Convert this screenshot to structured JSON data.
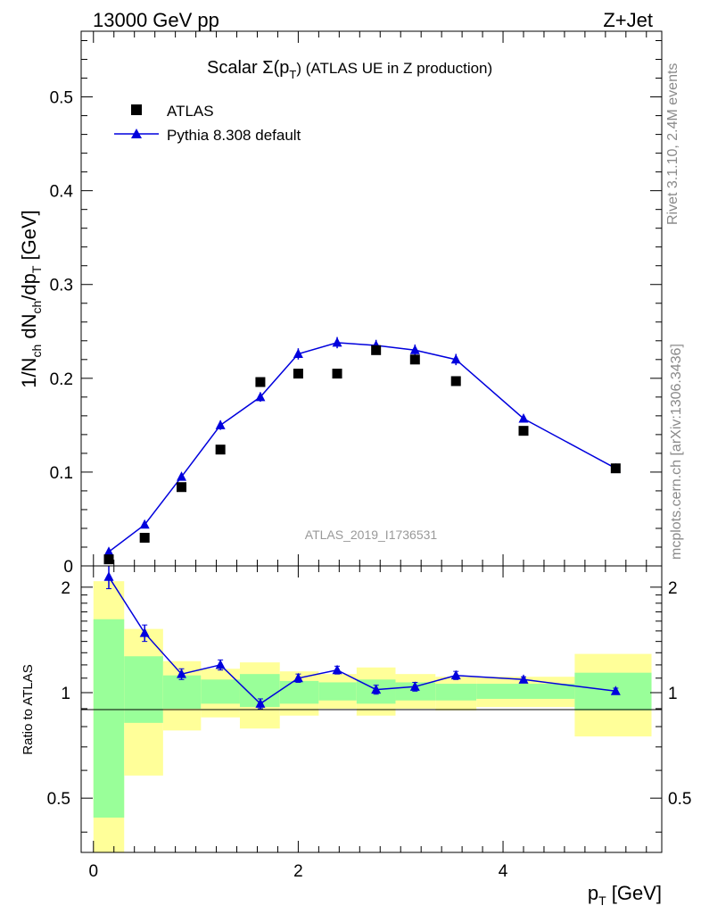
{
  "header": {
    "left": "13000 GeV pp",
    "right": "Z+Jet"
  },
  "side_text": {
    "right_top": "Rivet 3.1.10,  2.4M events",
    "right_bottom": "mcplots.cern.ch [arXiv:1306.3436]"
  },
  "chart_data": [
    {
      "type": "line",
      "panel": "main",
      "title_prefix": "Scalar Σ(p",
      "title_sub": "T",
      "title_suffix": ") (ATLAS UE in Z production)",
      "ylabel_parts": [
        "1/N",
        "ch",
        " dN",
        "ch",
        "/dp",
        "T",
        " [GeV]"
      ],
      "watermark": "ATLAS_2019_I1736531",
      "xlim": [
        -0.12,
        5.55
      ],
      "ylim": [
        0,
        0.57
      ],
      "grid": false,
      "legend_position": "top-left",
      "ytick_labels": [
        "0",
        "0.1",
        "0.2",
        "0.3",
        "0.4",
        "0.5"
      ],
      "ytick_values": [
        0,
        0.1,
        0.2,
        0.3,
        0.4,
        0.5
      ],
      "series": [
        {
          "name": "ATLAS",
          "marker": "square",
          "color": "#000000",
          "x": [
            0.15,
            0.5,
            0.86,
            1.24,
            1.63,
            2.0,
            2.38,
            2.76,
            3.14,
            3.54,
            4.2,
            5.1
          ],
          "y": [
            0.007,
            0.03,
            0.084,
            0.124,
            0.196,
            0.205,
            0.205,
            0.23,
            0.22,
            0.197,
            0.144,
            0.104
          ]
        },
        {
          "name": "Pythia 8.308 default",
          "marker": "triangle",
          "color": "#0000dd",
          "x": [
            0.15,
            0.5,
            0.86,
            1.24,
            1.63,
            2.0,
            2.38,
            2.76,
            3.14,
            3.54,
            4.2,
            5.1
          ],
          "y": [
            0.015,
            0.044,
            0.095,
            0.15,
            0.18,
            0.226,
            0.238,
            0.235,
            0.23,
            0.22,
            0.157,
            0.104
          ],
          "err": [
            0.002,
            0.002,
            0.004,
            0.005,
            0.005,
            0.006,
            0.006,
            0.006,
            0.006,
            0.006,
            0.003,
            0.002
          ]
        }
      ]
    },
    {
      "type": "line",
      "panel": "ratio",
      "xlabel_main": "p",
      "xlabel_sub": "T",
      "xlabel_unit": " [GeV]",
      "ylabel": "Ratio to ATLAS",
      "xlim": [
        -0.12,
        5.55
      ],
      "ylim": [
        0.35,
        2.3
      ],
      "log_y": true,
      "xtick_labels": [
        "0",
        "2",
        "4"
      ],
      "xtick_values": [
        0,
        2,
        4
      ],
      "ytick_labels": [
        "0.5",
        "1",
        "2"
      ],
      "ytick_values": [
        0.5,
        1,
        2
      ],
      "bands": {
        "bin_edges": [
          0.0,
          0.3,
          0.68,
          1.05,
          1.43,
          1.82,
          2.2,
          2.57,
          2.95,
          3.34,
          3.74,
          4.7,
          5.45
        ],
        "inner_low": [
          0.44,
          0.82,
          0.9,
          0.93,
          0.91,
          0.93,
          0.95,
          0.93,
          0.95,
          0.95,
          0.96,
          0.89
        ],
        "inner_high": [
          1.62,
          1.27,
          1.12,
          1.09,
          1.13,
          1.08,
          1.07,
          1.09,
          1.07,
          1.06,
          1.06,
          1.14
        ],
        "outer_low": [
          0.35,
          0.58,
          0.78,
          0.85,
          0.79,
          0.86,
          0.9,
          0.86,
          0.9,
          0.89,
          0.91,
          0.75
        ],
        "outer_high": [
          2.08,
          1.52,
          1.23,
          1.17,
          1.22,
          1.15,
          1.13,
          1.18,
          1.13,
          1.11,
          1.11,
          1.29
        ],
        "inner_color": "#99ff99",
        "outer_color": "#ffff99"
      },
      "series": [
        {
          "name": "Pythia 8.308 default",
          "marker": "triangle",
          "color": "#0000dd",
          "x": [
            0.15,
            0.5,
            0.86,
            1.24,
            1.63,
            2.0,
            2.38,
            2.76,
            3.14,
            3.54,
            4.2,
            5.1
          ],
          "y": [
            2.14,
            1.48,
            1.13,
            1.2,
            0.93,
            1.1,
            1.16,
            1.02,
            1.04,
            1.12,
            1.09,
            1.01
          ],
          "err": [
            0.16,
            0.08,
            0.04,
            0.04,
            0.03,
            0.03,
            0.03,
            0.03,
            0.03,
            0.03,
            0.02,
            0.02
          ]
        }
      ]
    }
  ]
}
